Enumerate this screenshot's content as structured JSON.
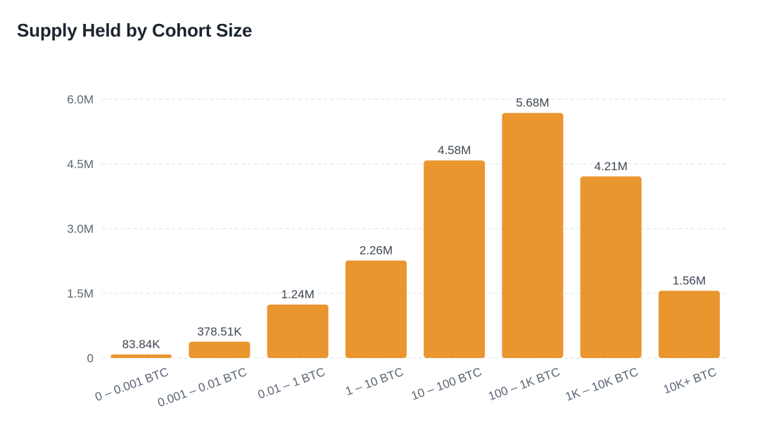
{
  "chart_data": {
    "type": "bar",
    "title": "Supply Held by Cohort Size",
    "categories": [
      "0 – 0.001 BTC",
      "0.001 – 0.01 BTC",
      "0.01 – 1 BTC",
      "1 – 10 BTC",
      "10 – 100 BTC",
      "100 – 1K BTC",
      "1K – 10K BTC",
      "10K+ BTC"
    ],
    "values": [
      83840,
      378510,
      1240000,
      2260000,
      4580000,
      5680000,
      4210000,
      1560000
    ],
    "value_labels": [
      "83.84K",
      "378.51K",
      "1.24M",
      "2.26M",
      "4.58M",
      "5.68M",
      "4.21M",
      "1.56M"
    ],
    "y_ticks": [
      0,
      1500000,
      3000000,
      4500000,
      6000000
    ],
    "y_tick_labels": [
      "0",
      "1.5M",
      "3.0M",
      "4.5M",
      "6.0M"
    ],
    "ylim": [
      0,
      6000000
    ],
    "xlabel": "",
    "ylabel": "",
    "grid": true,
    "legend": "none",
    "bar_color": "#e9962f",
    "grid_color": "#dcdfe3",
    "text_color": "#5b6573",
    "title_color": "#1c2430"
  }
}
